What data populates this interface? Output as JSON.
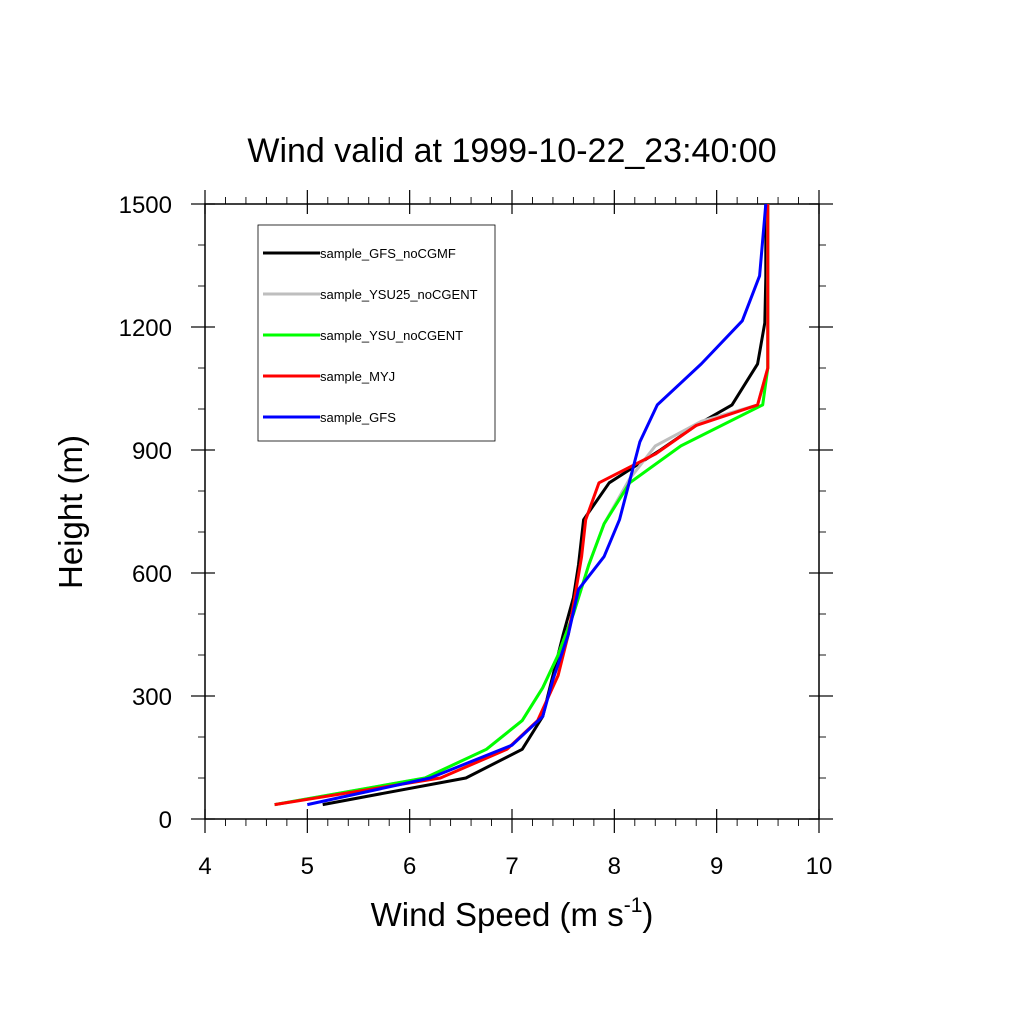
{
  "chart_data": {
    "type": "line",
    "title": "Wind valid at 1999-10-22_23:40:00",
    "xlabel": "Wind Speed (m s",
    "xlabel_sup": "-1",
    "xlabel_end": ")",
    "ylabel": "Height (m)",
    "xlim": [
      4,
      10
    ],
    "ylim": [
      0,
      1500
    ],
    "xticks": [
      4,
      5,
      6,
      7,
      8,
      9,
      10
    ],
    "yticks": [
      0,
      300,
      600,
      900,
      1200,
      1500
    ],
    "grid": false,
    "legend_position": "top-left",
    "series": [
      {
        "name": "sample_GFS_noCGMF",
        "color": "#000000",
        "points": [
          [
            5.15,
            35
          ],
          [
            6.55,
            100
          ],
          [
            7.1,
            170
          ],
          [
            7.3,
            250
          ],
          [
            7.4,
            350
          ],
          [
            7.5,
            450
          ],
          [
            7.6,
            540
          ],
          [
            7.65,
            620
          ],
          [
            7.7,
            730
          ],
          [
            7.95,
            820
          ],
          [
            8.45,
            900
          ],
          [
            8.8,
            960
          ],
          [
            9.15,
            1010
          ],
          [
            9.4,
            1110
          ],
          [
            9.47,
            1210
          ],
          [
            9.48,
            1320
          ],
          [
            9.48,
            1500
          ]
        ]
      },
      {
        "name": "sample_YSU25_noCGENT",
        "color": "#bebebe",
        "points": [
          [
            4.68,
            35
          ],
          [
            6.15,
            100
          ],
          [
            6.75,
            170
          ],
          [
            7.1,
            240
          ],
          [
            7.3,
            320
          ],
          [
            7.45,
            400
          ],
          [
            7.6,
            500
          ],
          [
            7.75,
            620
          ],
          [
            7.9,
            720
          ],
          [
            8.15,
            830
          ],
          [
            8.4,
            910
          ],
          [
            8.85,
            970
          ],
          [
            9.4,
            1010
          ],
          [
            9.5,
            1100
          ],
          [
            9.5,
            1500
          ]
        ]
      },
      {
        "name": "sample_YSU_noCGENT",
        "color": "#00ff00",
        "points": [
          [
            4.68,
            35
          ],
          [
            6.15,
            100
          ],
          [
            6.75,
            170
          ],
          [
            7.1,
            240
          ],
          [
            7.3,
            320
          ],
          [
            7.45,
            400
          ],
          [
            7.6,
            500
          ],
          [
            7.75,
            620
          ],
          [
            7.9,
            720
          ],
          [
            8.15,
            820
          ],
          [
            8.65,
            910
          ],
          [
            9.45,
            1010
          ],
          [
            9.5,
            1100
          ],
          [
            9.5,
            1500
          ]
        ]
      },
      {
        "name": "sample_MYJ",
        "color": "#ff0000",
        "points": [
          [
            4.68,
            35
          ],
          [
            6.3,
            100
          ],
          [
            6.95,
            170
          ],
          [
            7.25,
            240
          ],
          [
            7.45,
            350
          ],
          [
            7.55,
            450
          ],
          [
            7.62,
            550
          ],
          [
            7.68,
            640
          ],
          [
            7.72,
            730
          ],
          [
            7.85,
            820
          ],
          [
            8.4,
            890
          ],
          [
            8.8,
            960
          ],
          [
            9.4,
            1010
          ],
          [
            9.5,
            1100
          ],
          [
            9.5,
            1500
          ]
        ]
      },
      {
        "name": "sample_GFS",
        "color": "#0000ff",
        "points": [
          [
            5.0,
            35
          ],
          [
            6.2,
            100
          ],
          [
            7.0,
            180
          ],
          [
            7.3,
            250
          ],
          [
            7.4,
            340
          ],
          [
            7.55,
            450
          ],
          [
            7.65,
            560
          ],
          [
            7.9,
            640
          ],
          [
            8.05,
            730
          ],
          [
            8.25,
            920
          ],
          [
            8.42,
            1010
          ],
          [
            8.85,
            1110
          ],
          [
            9.25,
            1215
          ],
          [
            9.42,
            1325
          ],
          [
            9.48,
            1500
          ]
        ]
      }
    ]
  }
}
